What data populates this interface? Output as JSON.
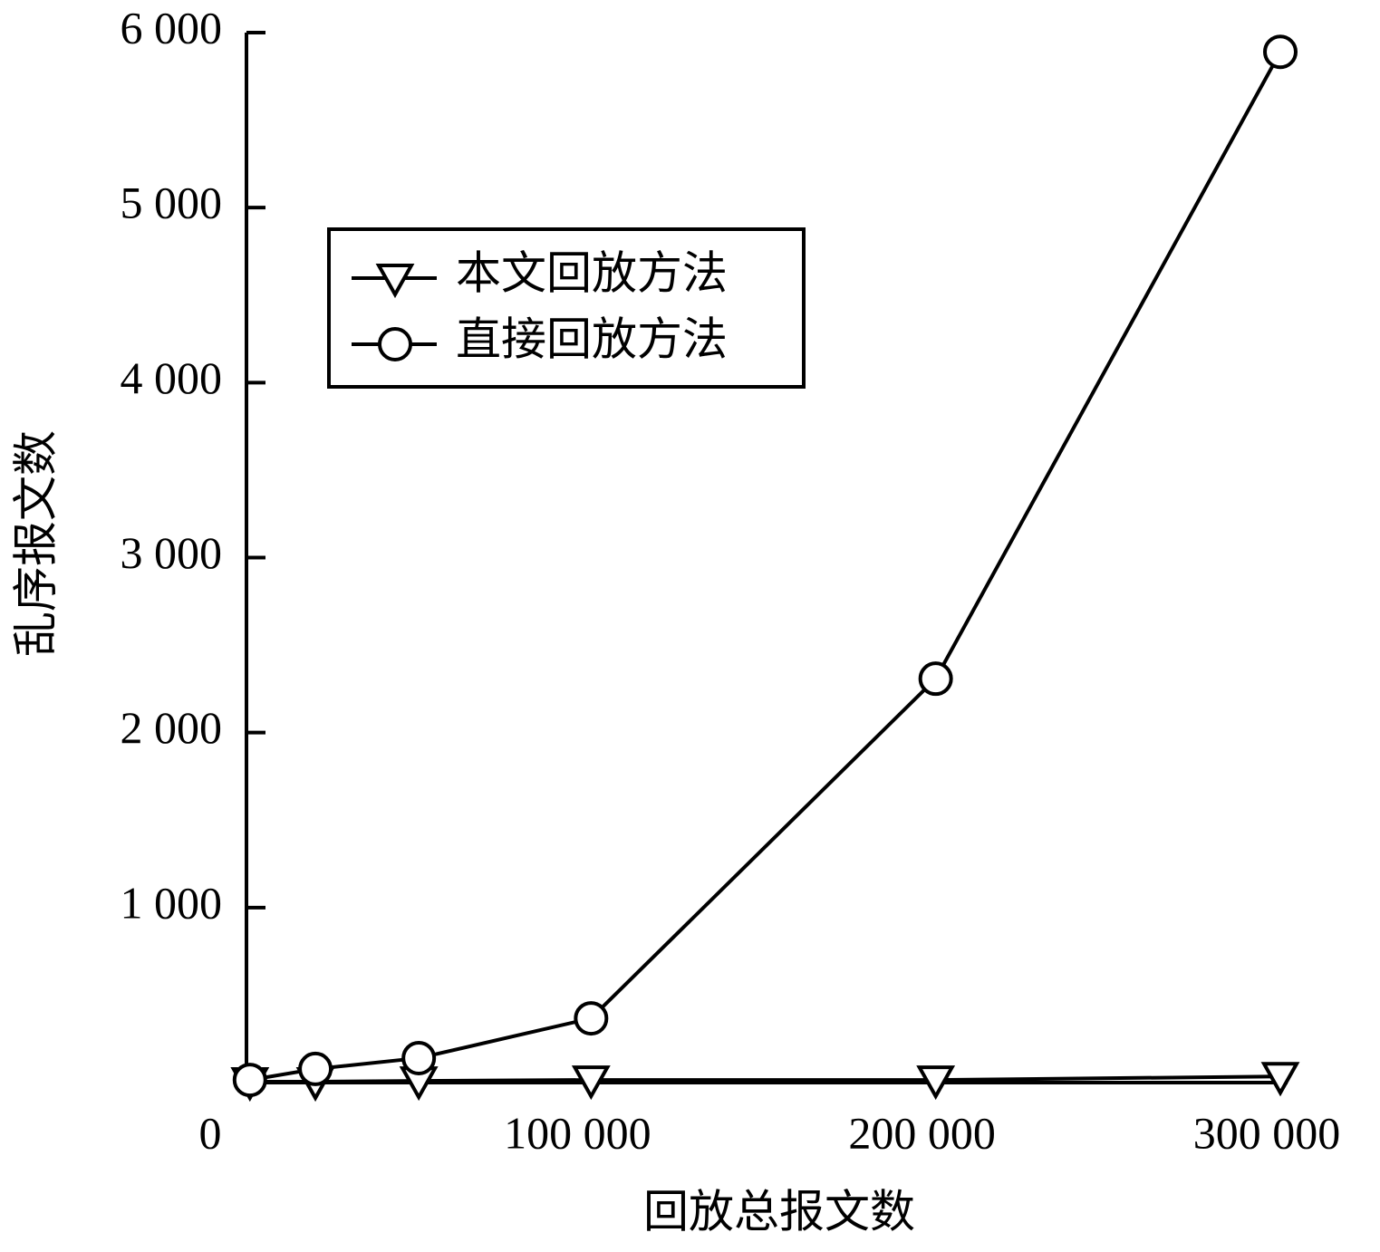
{
  "chart_data": {
    "type": "line",
    "x_label": "回放总报文数",
    "y_label": "乱序报文数",
    "x": [
      1000,
      20000,
      50000,
      100000,
      200000,
      300000
    ],
    "series": [
      {
        "name": "本文回放方法",
        "color": "#000000",
        "marker": "triangle-down",
        "values": [
          5,
          5,
          10,
          15,
          15,
          35
        ]
      },
      {
        "name": "直接回放方法",
        "color": "#000000",
        "marker": "circle",
        "values": [
          15,
          78,
          140,
          367,
          2308,
          5890
        ]
      }
    ],
    "xlim": [
      0,
      300000
    ],
    "ylim": [
      0,
      6000
    ],
    "xticks": [
      0,
      {
        "value": 100000,
        "label": "100 000"
      },
      {
        "value": 200000,
        "label": "200 000"
      },
      {
        "value": 300000,
        "label": "300 000"
      }
    ],
    "yticks": [
      {
        "value": 1000,
        "label": "1 000"
      },
      {
        "value": 2000,
        "label": "2 000"
      },
      {
        "value": 3000,
        "label": "3 000"
      },
      {
        "value": 4000,
        "label": "4 000"
      },
      {
        "value": 5000,
        "label": "5 000"
      },
      {
        "value": 6000,
        "label": "6 000"
      }
    ],
    "grid": false,
    "legend": "upper left"
  }
}
